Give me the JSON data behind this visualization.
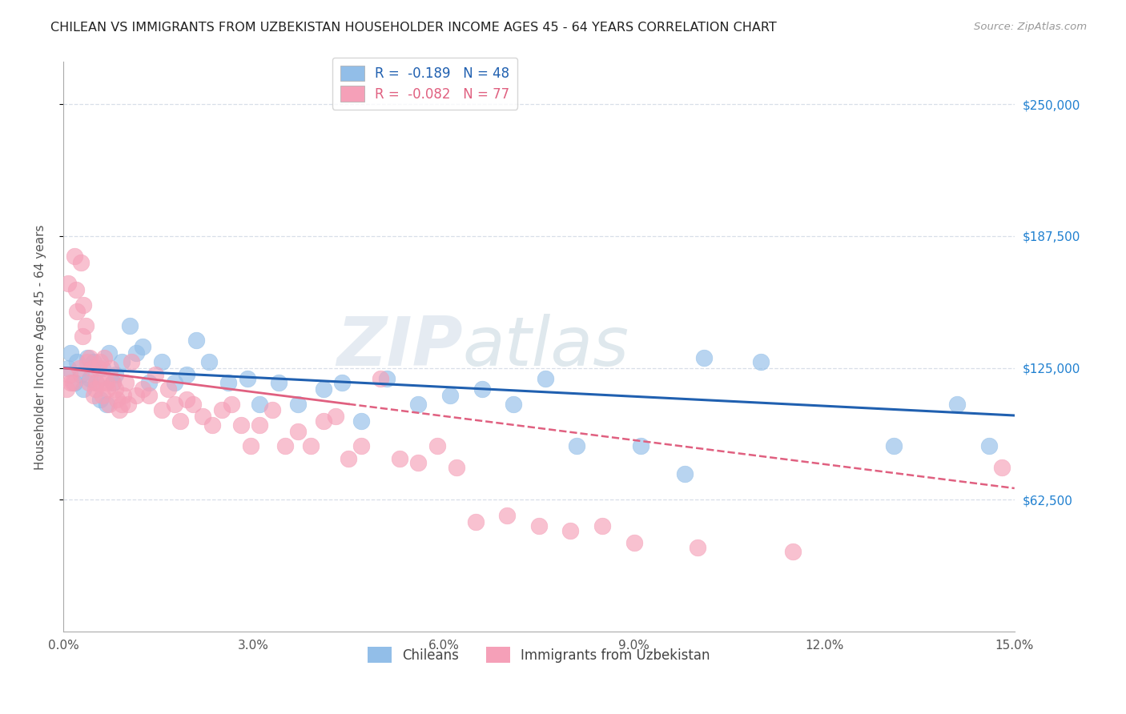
{
  "title": "CHILEAN VS IMMIGRANTS FROM UZBEKISTAN HOUSEHOLDER INCOME AGES 45 - 64 YEARS CORRELATION CHART",
  "source": "Source: ZipAtlas.com",
  "xlabel_ticks": [
    "0.0%",
    "3.0%",
    "6.0%",
    "9.0%",
    "12.0%",
    "15.0%"
  ],
  "xlabel_vals": [
    0.0,
    3.0,
    6.0,
    9.0,
    12.0,
    15.0
  ],
  "ylabel_ticks": [
    "$62,500",
    "$125,000",
    "$187,500",
    "$250,000"
  ],
  "ylabel_vals": [
    62500,
    125000,
    187500,
    250000
  ],
  "ylabel_label": "Householder Income Ages 45 - 64 years",
  "xlim": [
    0,
    15.0
  ],
  "ylim": [
    0,
    270000
  ],
  "legend_entries": [
    {
      "label": "R =  -0.189   N = 48",
      "color": "#aac4e0"
    },
    {
      "label": "R =  -0.082   N = 77",
      "color": "#f4a0b5"
    }
  ],
  "chileans_x": [
    0.08,
    0.12,
    0.18,
    0.22,
    0.28,
    0.32,
    0.38,
    0.42,
    0.48,
    0.52,
    0.58,
    0.62,
    0.68,
    0.72,
    0.78,
    0.82,
    0.92,
    1.05,
    1.15,
    1.25,
    1.35,
    1.55,
    1.75,
    1.95,
    2.1,
    2.3,
    2.6,
    2.9,
    3.1,
    3.4,
    3.7,
    4.1,
    4.4,
    4.7,
    5.1,
    5.6,
    6.1,
    6.6,
    7.1,
    7.6,
    8.1,
    9.1,
    10.1,
    11.0,
    13.1,
    14.1,
    14.6,
    9.8
  ],
  "chileans_y": [
    125000,
    132000,
    118000,
    128000,
    122000,
    115000,
    130000,
    120000,
    128000,
    118000,
    110000,
    125000,
    108000,
    132000,
    118000,
    122000,
    128000,
    145000,
    132000,
    135000,
    118000,
    128000,
    118000,
    122000,
    138000,
    128000,
    118000,
    120000,
    108000,
    118000,
    108000,
    115000,
    118000,
    100000,
    120000,
    108000,
    112000,
    115000,
    108000,
    120000,
    88000,
    88000,
    130000,
    128000,
    88000,
    108000,
    88000,
    75000
  ],
  "uzbekistan_x": [
    0.05,
    0.08,
    0.1,
    0.12,
    0.15,
    0.18,
    0.2,
    0.22,
    0.25,
    0.28,
    0.3,
    0.32,
    0.35,
    0.38,
    0.4,
    0.42,
    0.45,
    0.48,
    0.5,
    0.52,
    0.55,
    0.58,
    0.6,
    0.62,
    0.65,
    0.68,
    0.7,
    0.72,
    0.75,
    0.78,
    0.82,
    0.85,
    0.88,
    0.92,
    0.95,
    0.98,
    1.02,
    1.08,
    1.15,
    1.25,
    1.35,
    1.45,
    1.55,
    1.65,
    1.75,
    1.85,
    1.95,
    2.05,
    2.2,
    2.35,
    2.5,
    2.65,
    2.8,
    2.95,
    3.1,
    3.3,
    3.5,
    3.7,
    3.9,
    4.1,
    4.3,
    4.5,
    4.7,
    5.0,
    5.3,
    5.6,
    5.9,
    6.2,
    6.5,
    7.0,
    7.5,
    8.0,
    8.5,
    9.0,
    10.0,
    11.5,
    14.8
  ],
  "uzbekistan_y": [
    115000,
    165000,
    122000,
    118000,
    118000,
    178000,
    162000,
    152000,
    125000,
    175000,
    140000,
    155000,
    145000,
    128000,
    118000,
    130000,
    125000,
    112000,
    115000,
    118000,
    125000,
    128000,
    118000,
    112000,
    130000,
    118000,
    115000,
    108000,
    125000,
    118000,
    115000,
    110000,
    105000,
    108000,
    112000,
    118000,
    108000,
    128000,
    112000,
    115000,
    112000,
    122000,
    105000,
    115000,
    108000,
    100000,
    110000,
    108000,
    102000,
    98000,
    105000,
    108000,
    98000,
    88000,
    98000,
    105000,
    88000,
    95000,
    88000,
    100000,
    102000,
    82000,
    88000,
    120000,
    82000,
    80000,
    88000,
    78000,
    52000,
    55000,
    50000,
    48000,
    50000,
    42000,
    40000,
    38000,
    78000
  ],
  "watermark_part1": "ZIP",
  "watermark_part2": "atlas",
  "blue_color": "#92bee8",
  "pink_color": "#f5a0b8",
  "blue_line_color": "#2060b0",
  "pink_line_color": "#e06080",
  "background_color": "#ffffff",
  "grid_color": "#d8dfe8",
  "blue_intercept": 125000,
  "blue_slope": -1500,
  "pink_intercept": 125000,
  "pink_slope": -3800,
  "pink_solid_end": 4.5
}
